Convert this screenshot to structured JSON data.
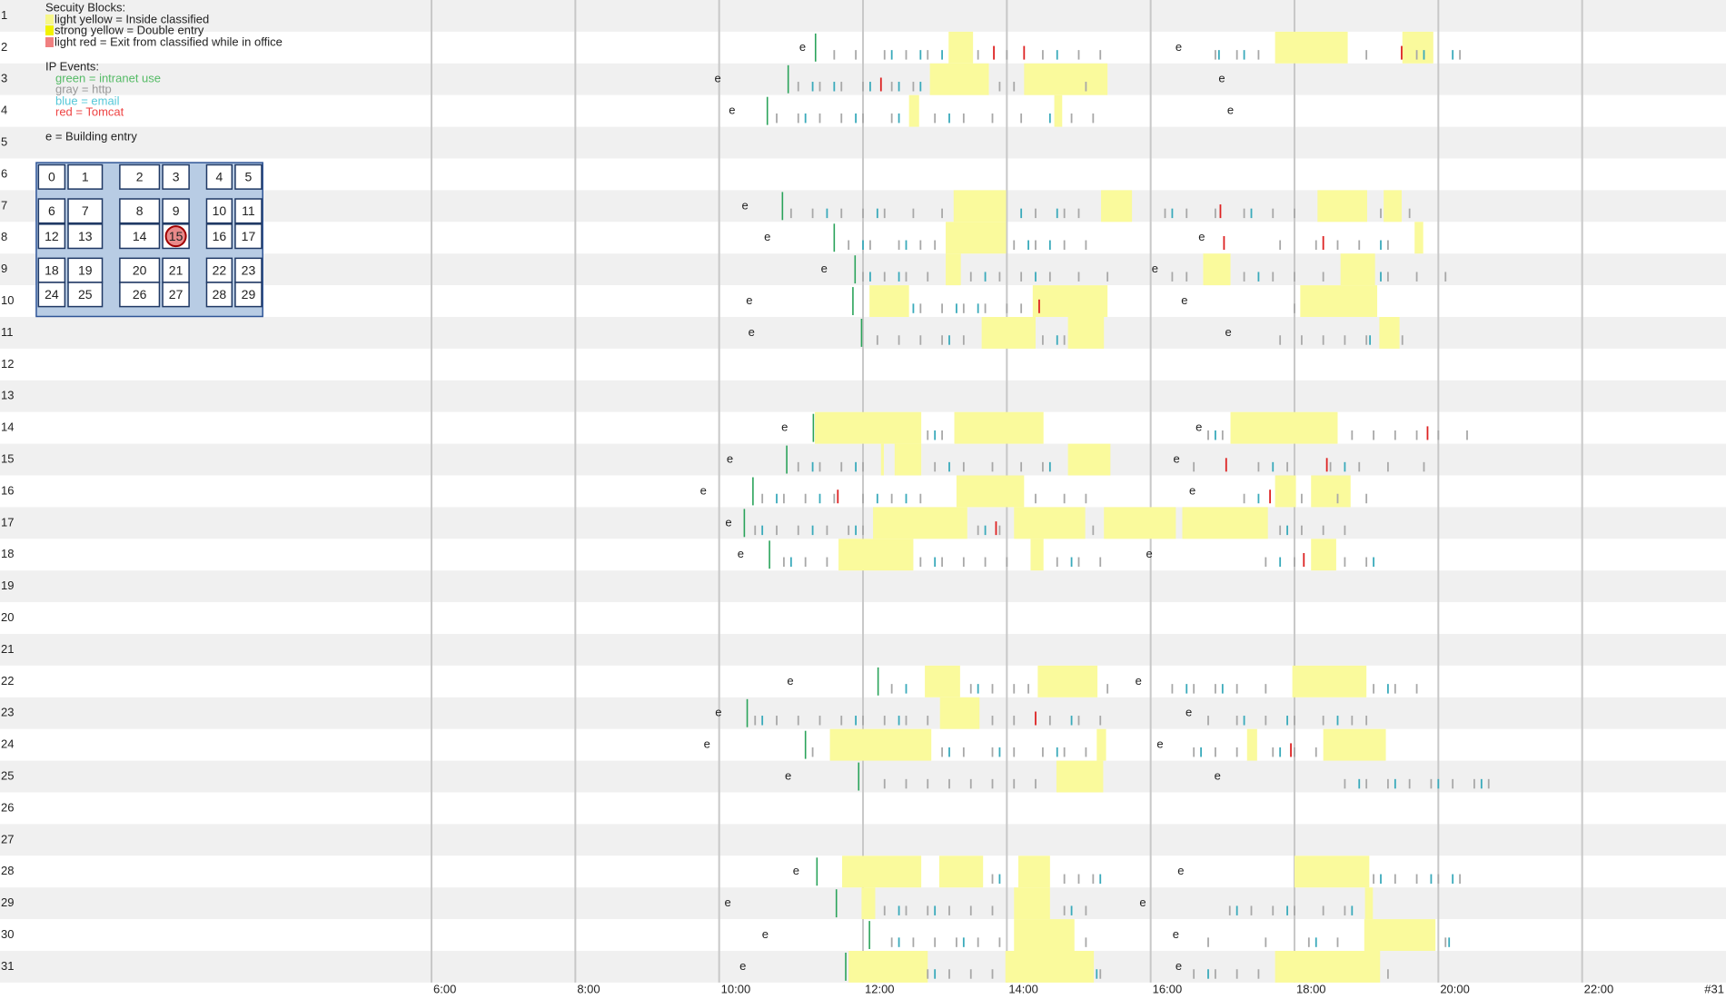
{
  "legend": {
    "security_title": "Secuity Blocks:",
    "security": [
      {
        "label": "light yellow = Inside classified",
        "color": "#f7f78a"
      },
      {
        "label": "strong yellow = Double entry",
        "color": "#f2f200"
      },
      {
        "label": "light red = Exit from classified while in office",
        "color": "#f08080"
      }
    ],
    "ip_title": "IP Events:",
    "ip": [
      {
        "label": "green = intranet use",
        "color": "#55bb66"
      },
      {
        "label": "gray = http",
        "color": "#999999"
      },
      {
        "label": "blue = email",
        "color": "#55c8d8"
      },
      {
        "label": "red = Tomcat",
        "color": "#ee4444"
      }
    ],
    "entry_note": "e = Building entry"
  },
  "floor_plan": {
    "rooms": [
      "0",
      "1",
      "2",
      "3",
      "4",
      "5",
      "6",
      "7",
      "8",
      "9",
      "10",
      "11",
      "12",
      "13",
      "14",
      "15",
      "16",
      "17",
      "18",
      "19",
      "20",
      "21",
      "22",
      "23",
      "24",
      "25",
      "26",
      "27",
      "28",
      "29"
    ],
    "highlighted": 15
  },
  "chart_data": {
    "type": "timeline",
    "xlim": [
      0,
      24
    ],
    "xticks": [
      {
        "value": 6,
        "label": "6:00"
      },
      {
        "value": 8,
        "label": "8:00"
      },
      {
        "value": 10,
        "label": "10:00"
      },
      {
        "value": 12,
        "label": "12:00"
      },
      {
        "value": 14,
        "label": "14:00"
      },
      {
        "value": 16,
        "label": "16:00"
      },
      {
        "value": 18,
        "label": "18:00"
      },
      {
        "value": 20,
        "label": "20:00"
      },
      {
        "value": 22,
        "label": "22:00"
      }
    ],
    "end_label": "#31",
    "entry_marker": "e",
    "block_color": "#fafa9c",
    "grid": true,
    "event_colors": {
      "intranet": "#2aa35a",
      "http": "#a8a8a8",
      "email": "#3aaabb",
      "tomcat": "#dd2222"
    },
    "rows": [
      {
        "label": "1"
      },
      {
        "label": "2",
        "entries": [
          11.16,
          16.39
        ],
        "blocks": [
          [
            13.19,
            13.53
          ],
          [
            17.73,
            18.74
          ],
          [
            19.5,
            19.93
          ]
        ],
        "intranet": [
          11.34
        ],
        "http": [
          11.6,
          11.9,
          12.3,
          12.6,
          12.9,
          13.6,
          14.0,
          14.5,
          15.0,
          15.3,
          16.9,
          17.2,
          17.5,
          19.0,
          19.7,
          20.3
        ],
        "email": [
          12.4,
          12.8,
          13.1,
          14.7,
          16.95,
          17.3,
          19.8,
          20.2
        ],
        "tomcat": [
          13.82,
          14.24,
          19.49
        ]
      },
      {
        "label": "3",
        "entries": [
          9.98,
          16.99
        ],
        "blocks": [
          [
            12.93,
            13.75
          ],
          [
            14.24,
            15.4
          ]
        ],
        "intranet": [
          10.96
        ],
        "http": [
          11.1,
          11.4,
          11.7,
          12.0,
          12.4,
          12.7,
          13.9,
          14.1,
          15.1
        ],
        "email": [
          11.3,
          11.6,
          12.1,
          12.5,
          12.8
        ],
        "tomcat": [
          12.25
        ]
      },
      {
        "label": "4",
        "entries": [
          10.18,
          17.11
        ],
        "blocks": [
          [
            12.64,
            12.78
          ],
          [
            14.66,
            14.77
          ]
        ],
        "intranet": [
          10.67
        ],
        "http": [
          10.8,
          11.1,
          11.4,
          11.7,
          12.0,
          12.4,
          13.0,
          13.4,
          13.8,
          14.2,
          14.9,
          15.2
        ],
        "email": [
          11.2,
          11.9,
          12.5,
          13.2,
          14.6
        ],
        "tomcat": []
      },
      {
        "label": "5"
      },
      {
        "label": "6"
      },
      {
        "label": "7",
        "entries": [
          10.36
        ],
        "blocks": [
          [
            13.26,
            13.99
          ],
          [
            15.31,
            15.74
          ],
          [
            18.32,
            19.01
          ],
          [
            19.24,
            19.49
          ]
        ],
        "intranet": [
          10.88
        ],
        "http": [
          11.0,
          11.3,
          11.7,
          12.0,
          12.3,
          12.7,
          13.1,
          14.4,
          14.8,
          15.0,
          16.2,
          16.5,
          16.9,
          17.3,
          17.7,
          18.0,
          19.2,
          19.6
        ],
        "email": [
          11.5,
          12.2,
          14.2,
          14.7,
          16.3,
          17.4
        ],
        "tomcat": [
          16.97
        ]
      },
      {
        "label": "8",
        "entries": [
          10.67,
          16.71
        ],
        "blocks": [
          [
            13.15,
            13.99
          ],
          [
            19.67,
            19.79
          ]
        ],
        "intranet": [
          11.6
        ],
        "http": [
          11.8,
          12.1,
          12.5,
          12.8,
          13.0,
          14.1,
          14.4,
          14.8,
          15.1,
          17.8,
          18.3,
          18.6,
          18.9,
          19.3
        ],
        "email": [
          12.0,
          12.6,
          14.3,
          14.6,
          19.2
        ],
        "tomcat": [
          17.02,
          18.4
        ]
      },
      {
        "label": "9",
        "entries": [
          11.46,
          16.06
        ],
        "blocks": [
          [
            13.15,
            13.36
          ],
          [
            16.73,
            17.11
          ],
          [
            18.64,
            19.12
          ]
        ],
        "intranet": [
          11.89
        ],
        "http": [
          12.0,
          12.3,
          12.6,
          12.9,
          13.5,
          13.9,
          14.2,
          14.6,
          15.0,
          15.4,
          16.3,
          16.5,
          17.3,
          17.7,
          18.0,
          18.4,
          19.3,
          19.7,
          20.1
        ],
        "email": [
          12.1,
          12.5,
          13.7,
          14.4,
          17.5,
          19.2
        ],
        "tomcat": []
      },
      {
        "label": "10",
        "entries": [
          10.42,
          16.47
        ],
        "blocks": [
          [
            12.09,
            12.64
          ],
          [
            14.36,
            15.4
          ],
          [
            18.08,
            19.15
          ]
        ],
        "intranet": [
          11.86
        ],
        "http": [
          12.8,
          13.1,
          13.4,
          13.7,
          14.0,
          14.2,
          18.0
        ],
        "email": [
          12.7,
          13.3,
          13.6
        ],
        "tomcat": [
          14.45
        ]
      },
      {
        "label": "11",
        "entries": [
          10.45,
          17.08
        ],
        "blocks": [
          [
            13.65,
            14.4
          ],
          [
            14.85,
            15.35
          ],
          [
            19.18,
            19.46
          ]
        ],
        "intranet": [
          11.98
        ],
        "http": [
          12.2,
          12.5,
          12.8,
          13.1,
          13.4,
          14.5,
          14.8,
          17.8,
          18.1,
          18.4,
          18.7,
          19.0,
          19.5
        ],
        "email": [
          13.2,
          14.7,
          19.05
        ],
        "tomcat": []
      },
      {
        "label": "12"
      },
      {
        "label": "13"
      },
      {
        "label": "14",
        "entries": [
          10.91,
          16.67
        ],
        "blocks": [
          [
            11.33,
            12.81
          ],
          [
            13.27,
            14.51
          ],
          [
            17.11,
            18.6
          ]
        ],
        "intranet": [
          11.31
        ],
        "http": [
          12.9,
          13.1,
          16.8,
          17.0,
          18.8,
          19.1,
          19.4,
          19.7,
          20.0,
          20.4
        ],
        "email": [
          13.0,
          16.9
        ],
        "tomcat": [
          19.85
        ]
      },
      {
        "label": "15",
        "entries": [
          10.15,
          16.36
        ],
        "blocks": [
          [
            12.25,
            12.29
          ],
          [
            12.44,
            12.81
          ],
          [
            14.85,
            15.44
          ]
        ],
        "intranet": [
          10.94
        ],
        "http": [
          11.1,
          11.4,
          11.7,
          12.0,
          13.0,
          13.4,
          13.8,
          14.2,
          14.5,
          16.6,
          17.5,
          17.9,
          18.5,
          18.9,
          19.3,
          19.8
        ],
        "email": [
          11.3,
          11.9,
          13.2,
          14.6,
          17.7,
          18.7
        ],
        "tomcat": [
          17.05,
          18.45
        ]
      },
      {
        "label": "16",
        "entries": [
          9.78,
          16.58
        ],
        "blocks": [
          [
            13.3,
            14.24
          ],
          [
            17.73,
            18.02
          ],
          [
            18.23,
            18.78
          ]
        ],
        "intranet": [
          10.47
        ],
        "http": [
          10.6,
          10.9,
          11.2,
          11.6,
          12.0,
          12.4,
          12.8,
          14.4,
          14.8,
          15.1,
          17.3,
          18.1,
          18.6,
          19.0
        ],
        "email": [
          10.8,
          11.4,
          12.2,
          12.6,
          17.5
        ],
        "tomcat": [
          11.65,
          17.66
        ]
      },
      {
        "label": "17",
        "entries": [
          10.13
        ],
        "blocks": [
          [
            12.14,
            13.45
          ],
          [
            14.1,
            15.09
          ],
          [
            15.35,
            16.35
          ],
          [
            16.44,
            17.63
          ]
        ],
        "intranet": [
          10.35
        ],
        "http": [
          10.5,
          10.8,
          11.1,
          11.5,
          11.8,
          12.0,
          13.6,
          13.9,
          15.2,
          17.8,
          18.1,
          18.4,
          18.7
        ],
        "email": [
          10.6,
          11.3,
          11.9,
          13.7,
          17.9
        ],
        "tomcat": [
          13.85
        ]
      },
      {
        "label": "18",
        "entries": [
          10.3,
          15.98
        ],
        "blocks": [
          [
            11.66,
            12.7
          ],
          [
            14.33,
            14.51
          ],
          [
            18.23,
            18.58
          ]
        ],
        "intranet": [
          10.7
        ],
        "http": [
          10.9,
          11.2,
          11.5,
          12.8,
          13.1,
          13.4,
          13.7,
          14.0,
          14.7,
          15.0,
          15.3,
          17.6,
          18.0,
          18.7,
          19.0
        ],
        "email": [
          11.0,
          13.0,
          14.9,
          17.8,
          19.1
        ],
        "tomcat": [
          18.13
        ]
      },
      {
        "label": "19"
      },
      {
        "label": "20"
      },
      {
        "label": "21"
      },
      {
        "label": "22",
        "entries": [
          10.99,
          15.83
        ],
        "blocks": [
          [
            12.86,
            13.35
          ],
          [
            14.43,
            15.26
          ],
          [
            17.97,
            19.0
          ]
        ],
        "intranet": [
          12.21
        ],
        "http": [
          12.4,
          13.5,
          13.8,
          14.1,
          14.3,
          15.4,
          16.3,
          16.6,
          16.9,
          17.2,
          17.6,
          19.1,
          19.4,
          19.7
        ],
        "email": [
          12.6,
          13.6,
          16.5,
          17.0,
          19.3
        ],
        "tomcat": []
      },
      {
        "label": "23",
        "entries": [
          9.99,
          16.53
        ],
        "blocks": [
          [
            13.07,
            13.62
          ]
        ],
        "intranet": [
          10.39
        ],
        "http": [
          10.5,
          10.8,
          11.1,
          11.4,
          11.7,
          12.0,
          12.3,
          12.6,
          12.9,
          13.8,
          14.1,
          14.6,
          15.0,
          15.3,
          16.8,
          17.2,
          17.6,
          18.0,
          18.4,
          18.8,
          19.0
        ],
        "email": [
          10.6,
          11.9,
          12.5,
          14.9,
          17.3,
          17.9,
          18.6
        ],
        "tomcat": [
          14.4
        ]
      },
      {
        "label": "24",
        "entries": [
          9.83,
          16.13
        ],
        "blocks": [
          [
            11.54,
            12.95
          ],
          [
            15.25,
            15.38
          ],
          [
            17.34,
            17.48
          ],
          [
            18.4,
            19.27
          ]
        ],
        "intranet": [
          11.2
        ],
        "http": [
          11.3,
          13.1,
          13.4,
          13.8,
          14.1,
          14.5,
          14.8,
          15.1,
          16.6,
          16.9,
          17.2,
          17.7,
          18.0,
          18.3
        ],
        "email": [
          13.2,
          13.9,
          14.7,
          16.7,
          17.8
        ],
        "tomcat": [
          17.95
        ]
      },
      {
        "label": "25",
        "entries": [
          10.96,
          16.93
        ],
        "blocks": [
          [
            14.69,
            15.34
          ]
        ],
        "intranet": [
          11.94
        ],
        "http": [
          12.3,
          12.6,
          12.9,
          13.2,
          13.5,
          13.8,
          14.1,
          14.4,
          18.7,
          19.0,
          19.3,
          19.6,
          19.9,
          20.2,
          20.5,
          20.7
        ],
        "email": [
          18.9,
          19.4,
          20.0,
          20.6
        ],
        "tomcat": []
      },
      {
        "label": "26"
      },
      {
        "label": "27"
      },
      {
        "label": "28",
        "entries": [
          11.07,
          16.42
        ],
        "blocks": [
          [
            11.71,
            12.81
          ],
          [
            13.06,
            13.67
          ],
          [
            14.16,
            14.6
          ],
          [
            18.0,
            19.04
          ]
        ],
        "intranet": [
          11.36
        ],
        "http": [
          13.8,
          14.8,
          15.0,
          15.2,
          19.1,
          19.4,
          19.7,
          20.0,
          20.3
        ],
        "email": [
          13.9,
          15.3,
          19.2,
          19.9,
          20.2
        ],
        "tomcat": []
      },
      {
        "label": "29",
        "entries": [
          10.12,
          15.89
        ],
        "blocks": [
          [
            11.98,
            12.17
          ],
          [
            14.1,
            14.6
          ],
          [
            18.98,
            19.09
          ]
        ],
        "intranet": [
          11.63
        ],
        "http": [
          12.3,
          12.6,
          12.9,
          13.2,
          13.5,
          13.8,
          14.8,
          15.1,
          17.1,
          17.4,
          17.7,
          18.0,
          18.4,
          18.7
        ],
        "email": [
          12.5,
          13.0,
          14.9,
          17.2,
          17.9,
          18.8
        ],
        "tomcat": []
      },
      {
        "label": "30",
        "entries": [
          10.64,
          16.35
        ],
        "blocks": [
          [
            14.1,
            14.94
          ],
          [
            18.97,
            19.96
          ]
        ],
        "intranet": [
          12.09
        ],
        "http": [
          12.4,
          12.7,
          13.0,
          13.3,
          13.6,
          13.9,
          15.1,
          16.8,
          17.6,
          18.2,
          18.6,
          20.1
        ],
        "email": [
          12.5,
          13.4,
          18.3,
          20.15
        ],
        "tomcat": []
      },
      {
        "label": "31",
        "entries": [
          10.33,
          16.39
        ],
        "blocks": [
          [
            11.8,
            12.9
          ],
          [
            13.98,
            15.21
          ],
          [
            17.73,
            19.19
          ]
        ],
        "intranet": [
          11.76
        ],
        "http": [
          12.9,
          13.2,
          13.5,
          13.8,
          15.3,
          16.6,
          16.9,
          17.2,
          17.5,
          19.3
        ],
        "email": [
          13.0,
          15.25,
          16.8
        ],
        "tomcat": []
      }
    ]
  }
}
